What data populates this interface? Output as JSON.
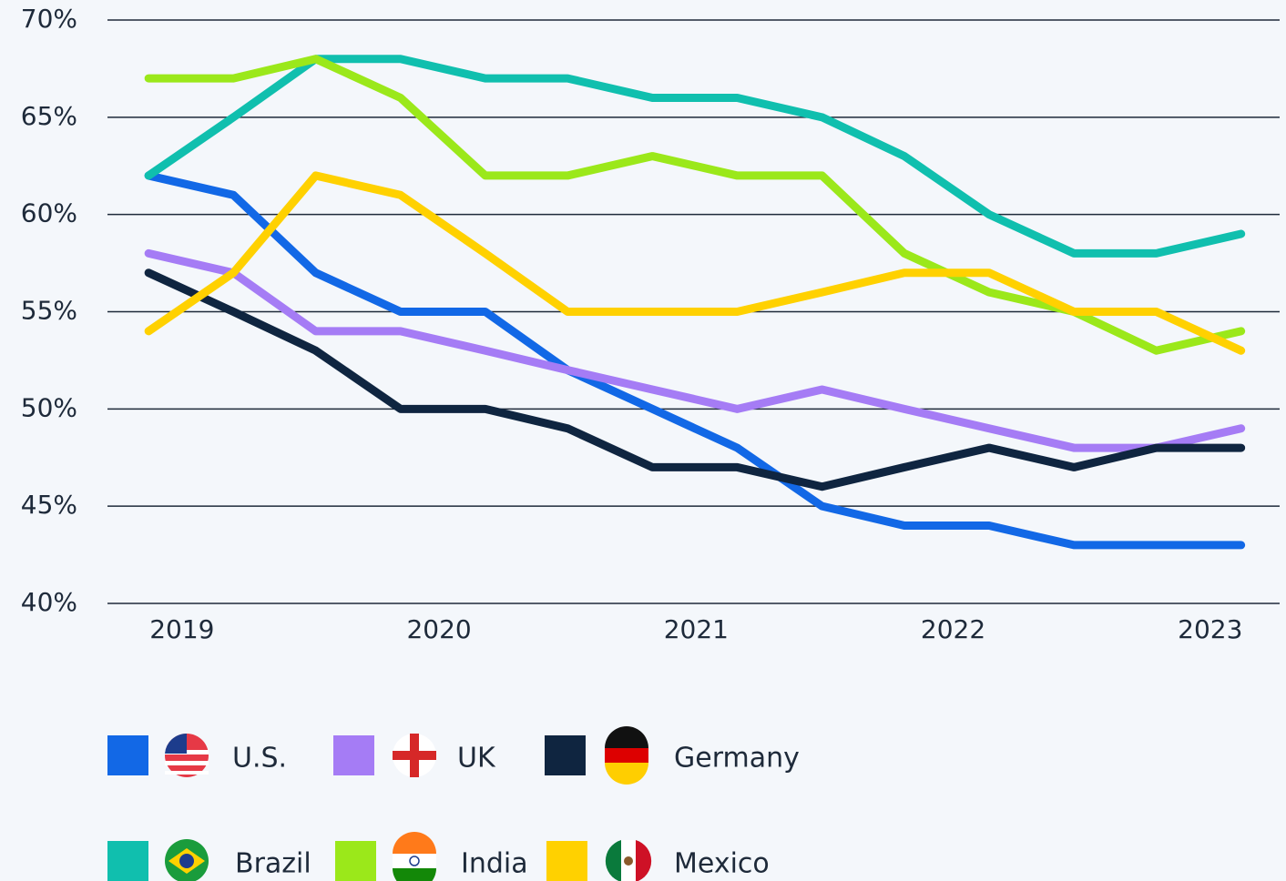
{
  "chart_data": {
    "type": "line",
    "x": [
      2018.87,
      2019.2,
      2019.52,
      2019.85,
      2020.18,
      2020.5,
      2020.83,
      2021.16,
      2021.49,
      2021.81,
      2022.14,
      2022.47,
      2022.79,
      2023.12
    ],
    "xlim": [
      2018.71,
      2023.27
    ],
    "xticks": [
      2019,
      2020,
      2021,
      2022,
      2023
    ],
    "ylim": [
      40,
      70
    ],
    "yticks": [
      {
        "value": 40,
        "label": "40%"
      },
      {
        "value": 45,
        "label": "45%"
      },
      {
        "value": 50,
        "label": "50%"
      },
      {
        "value": 55,
        "label": "55%"
      },
      {
        "value": 60,
        "label": "60%"
      },
      {
        "value": 65,
        "label": "65%"
      },
      {
        "value": 70,
        "label": "70%"
      }
    ],
    "grid": true,
    "series": [
      {
        "name": "U.S.",
        "color": "#1268e6",
        "values": [
          62,
          61,
          57,
          55,
          55,
          52,
          50,
          48,
          45,
          44,
          44,
          43,
          43,
          43
        ]
      },
      {
        "name": "UK",
        "color": "#a57cf5",
        "values": [
          58,
          57,
          54,
          54,
          53,
          52,
          51,
          50,
          51,
          50,
          49,
          48,
          48,
          49
        ]
      },
      {
        "name": "Germany",
        "color": "#0f2540",
        "values": [
          57,
          55,
          53,
          50,
          50,
          49,
          47,
          47,
          46,
          47,
          48,
          47,
          48,
          48
        ]
      },
      {
        "name": "Brazil",
        "color": "#10bfae",
        "values": [
          62,
          65,
          68,
          68,
          67,
          67,
          66,
          66,
          65,
          63,
          60,
          58,
          58,
          59
        ]
      },
      {
        "name": "India",
        "color": "#9be81a",
        "values": [
          67,
          67,
          68,
          66,
          62,
          62,
          63,
          62,
          62,
          58,
          56,
          55,
          53,
          54
        ]
      },
      {
        "name": "Mexico",
        "color": "#ffd100",
        "values": [
          54,
          57,
          62,
          61,
          58,
          55,
          55,
          55,
          56,
          57,
          57,
          55,
          55,
          53
        ]
      }
    ]
  }
}
